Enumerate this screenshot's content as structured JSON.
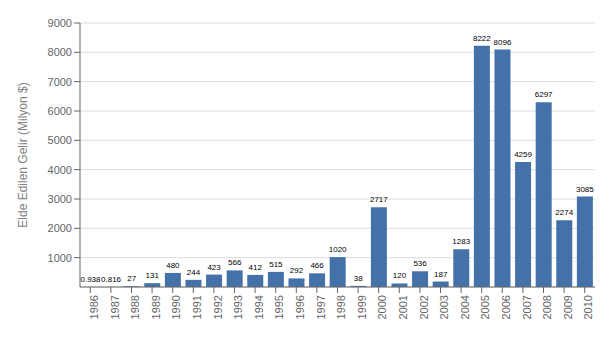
{
  "chart_data": {
    "type": "bar",
    "categories": [
      "1986",
      "1987",
      "1988",
      "1989",
      "1990",
      "1991",
      "1992",
      "1993",
      "1994",
      "1995",
      "1996",
      "1997",
      "1998",
      "1999",
      "2000",
      "2001",
      "2002",
      "2003",
      "2004",
      "2005",
      "2006",
      "2007",
      "2008",
      "2009",
      "2010"
    ],
    "values": [
      0.938,
      0.816,
      27,
      131,
      480,
      244,
      423,
      566,
      412,
      515,
      292,
      466,
      1020,
      38,
      2717,
      120,
      536,
      187,
      1283,
      8222,
      8096,
      4259,
      6297,
      2274,
      3085
    ],
    "color": "#4472a8",
    "ylabel": "Elde Edilen Gelir (Milyon $)",
    "ylim": [
      0,
      9000
    ],
    "yticks": [
      1000,
      2000,
      3000,
      4000,
      5000,
      6000,
      7000,
      8000,
      9000
    ],
    "grid": true,
    "data_labels": true
  }
}
